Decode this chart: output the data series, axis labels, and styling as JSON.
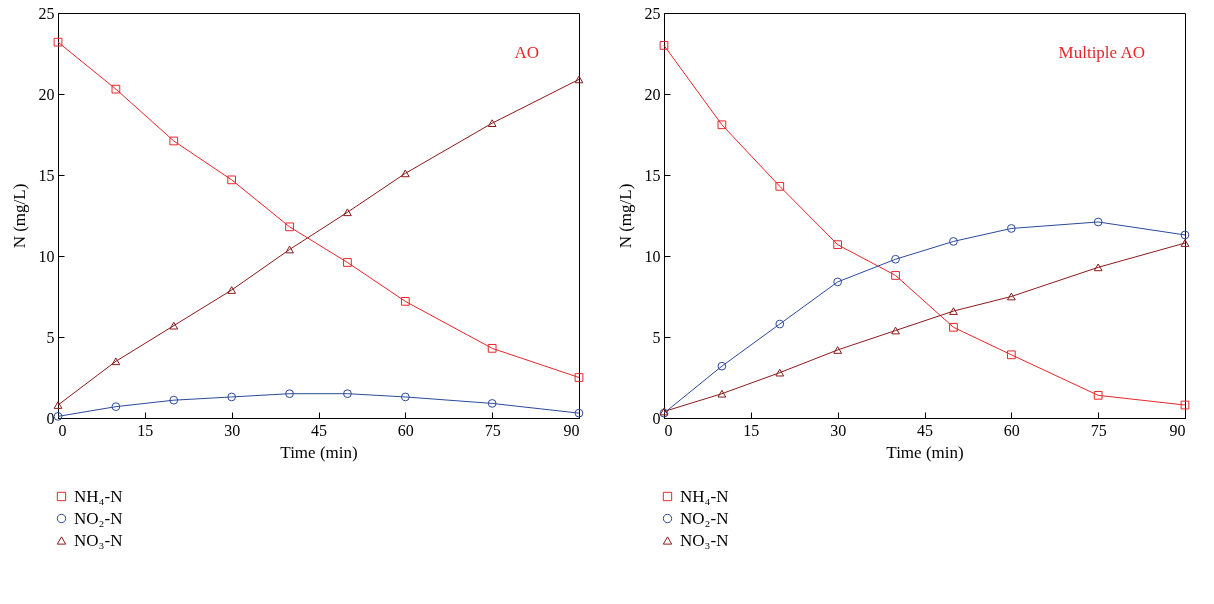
{
  "chart_data": [
    {
      "type": "line",
      "xlabel": "Time (min)",
      "ylabel": "N (mg/L)",
      "x": [
        0,
        10,
        20,
        30,
        40,
        50,
        60,
        75,
        90
      ],
      "xlim": [
        0,
        90
      ],
      "xticks": [
        0,
        15,
        30,
        45,
        60,
        75,
        90
      ],
      "ylim": [
        0,
        25
      ],
      "yticks": [
        0,
        5,
        10,
        15,
        20,
        25
      ],
      "grid": false,
      "legend": "bottom",
      "annotations": [
        "AO"
      ],
      "series": [
        {
          "name": "NH₄-N",
          "color": "#e8262a",
          "marker": "square",
          "values": [
            23.2,
            20.3,
            17.1,
            14.7,
            11.8,
            9.6,
            7.2,
            4.3,
            2.5
          ]
        },
        {
          "name": "NO₂-N",
          "color": "#2b4a9a",
          "marker": "circle",
          "values": [
            0.1,
            0.7,
            1.1,
            1.3,
            1.5,
            1.5,
            1.3,
            0.9,
            0.3
          ]
        },
        {
          "name": "NO₃-N",
          "color": "#8b1a1a",
          "marker": "triangle",
          "values": [
            0.8,
            3.5,
            5.7,
            7.9,
            10.4,
            12.7,
            15.1,
            18.2,
            20.9
          ]
        }
      ]
    },
    {
      "type": "line",
      "xlabel": "Time (min)",
      "ylabel": "N (mg/L)",
      "x": [
        0,
        10,
        20,
        30,
        40,
        50,
        60,
        75,
        90
      ],
      "xlim": [
        0,
        90
      ],
      "xticks": [
        0,
        15,
        30,
        45,
        60,
        75,
        90
      ],
      "ylim": [
        0,
        25
      ],
      "yticks": [
        0,
        5,
        10,
        15,
        20,
        25
      ],
      "grid": false,
      "legend": "bottom",
      "annotations": [
        "Multiple AO"
      ],
      "series": [
        {
          "name": "NH₄-N",
          "color": "#e8262a",
          "marker": "square",
          "values": [
            23.0,
            18.1,
            14.3,
            10.7,
            8.8,
            5.6,
            3.9,
            1.4,
            0.8
          ]
        },
        {
          "name": "NO₂-N",
          "color": "#2b4a9a",
          "marker": "circle",
          "values": [
            0.3,
            3.2,
            5.8,
            8.4,
            9.8,
            10.9,
            11.7,
            12.1,
            11.3
          ]
        },
        {
          "name": "NO₃-N",
          "color": "#8b1a1a",
          "marker": "triangle",
          "values": [
            0.4,
            1.5,
            2.8,
            4.2,
            5.4,
            6.6,
            7.5,
            9.3,
            10.8
          ]
        }
      ]
    }
  ]
}
